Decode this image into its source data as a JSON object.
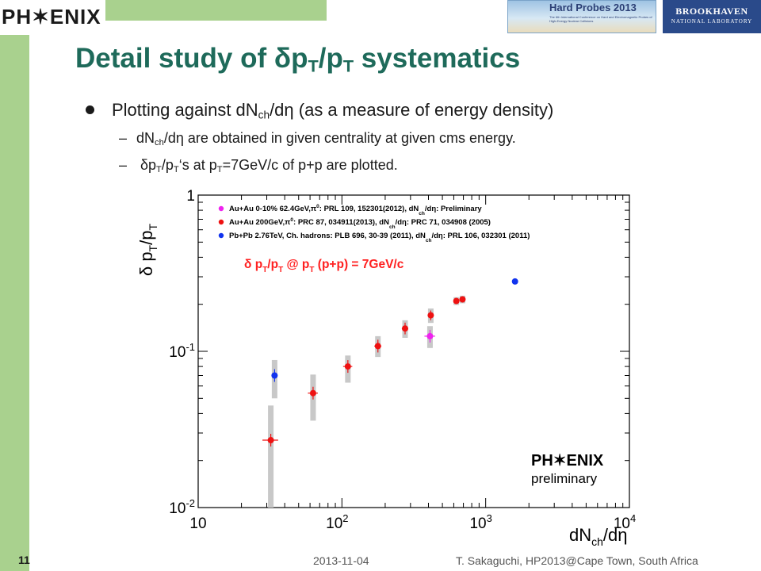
{
  "header": {
    "logo_text": "PH✶ENIX",
    "conference_banner": "Hard Probes 2013",
    "conference_subtitle": "The 6th International Conference on Hard and Electromagnetic Probes of High-Energy Nuclear Collisions",
    "lab_name_line1": "BROOKHAVEN",
    "lab_name_line2": "NATIONAL LABORATORY"
  },
  "slide": {
    "title": {
      "pre": "Detail study of δp",
      "sub1": "T",
      "mid": "/p",
      "sub2": "T",
      "post": " systematics"
    },
    "bullet1": {
      "pre": "Plotting against dN",
      "sub": "ch",
      "post": "/dη (as a measure of energy density)"
    },
    "sub_bullet1": {
      "dash": "–",
      "pre": "dN",
      "sub": "ch",
      "post": "/dη are obtained in given centrality at given cms energy."
    },
    "sub_bullet2": {
      "dash": "–",
      "a": " δp",
      "sub1": "T",
      "b": "/p",
      "sub2": "T",
      "c": "‘s at p",
      "sub3": "T",
      "d": "=7GeV/c of p+p are plotted."
    }
  },
  "footer": {
    "slide_number": "11",
    "date": "2013-11-04",
    "author": "T. Sakaguchi, HP2013@Cape Town, South Africa"
  },
  "chart_data": {
    "type": "scatter",
    "x_scale": "log",
    "y_scale": "log",
    "xlim": [
      10,
      10000
    ],
    "ylim": [
      0.01,
      1
    ],
    "x_tick_labels": [
      {
        "value": 10,
        "base": "10",
        "exp": ""
      },
      {
        "value": 100,
        "base": "10",
        "exp": "2"
      },
      {
        "value": 1000,
        "base": "10",
        "exp": "3"
      },
      {
        "value": 10000,
        "base": "10",
        "exp": "4"
      }
    ],
    "y_tick_labels": [
      {
        "value": 1,
        "base": "1",
        "exp": ""
      },
      {
        "value": 0.1,
        "base": "10",
        "exp": "-1"
      },
      {
        "value": 0.01,
        "base": "10",
        "exp": "-2"
      }
    ],
    "xlabel": {
      "pre": "dN",
      "sub": "ch",
      "post": "/dη"
    },
    "ylabel": {
      "pre": "δ p",
      "sub1": "T",
      "mid": "/p",
      "sub2": "T"
    },
    "annotation": {
      "pre": "δ p",
      "sub1": "T",
      "mid1": "/p",
      "sub2": "T",
      "mid2": " @ p",
      "sub3": "T",
      "post": " (p+p) = 7GeV/c",
      "color": "#ff2020"
    },
    "watermark": {
      "logo": "PH✶ENIX",
      "text": "preliminary"
    },
    "grid": false,
    "legend_position": "top-left",
    "series": [
      {
        "name_parts": {
          "pre": "Au+Au 0-10% 62.4GeV,π",
          "sup": "0",
          "post": ": PRL 109, 152301(2012), dN",
          "sub": "ch",
          "post2": "/dη: Preliminary"
        },
        "color": "#ee22ee",
        "points": [
          {
            "x": 410,
            "y": 0.125,
            "xerr": 35,
            "ylo": 0.105,
            "yhi": 0.145
          }
        ]
      },
      {
        "name_parts": {
          "pre": "Au+Au 200GeV,π",
          "sup": "0",
          "post": ": PRC 87, 034911(2013), dN",
          "sub": "ch",
          "post2": "/dη: PRC 71, 034908 (2005)"
        },
        "color": "#ee1111",
        "points": [
          {
            "x": 32,
            "y": 0.027,
            "xerr": 4,
            "ylo": 0.01,
            "yhi": 0.045
          },
          {
            "x": 63,
            "y": 0.054,
            "xerr": 5,
            "ylo": 0.036,
            "yhi": 0.071
          },
          {
            "x": 110,
            "y": 0.08,
            "xerr": 8,
            "ylo": 0.063,
            "yhi": 0.094
          },
          {
            "x": 178,
            "y": 0.108,
            "xerr": 10,
            "ylo": 0.092,
            "yhi": 0.125
          },
          {
            "x": 275,
            "y": 0.14,
            "xerr": 14,
            "ylo": 0.122,
            "yhi": 0.158
          },
          {
            "x": 415,
            "y": 0.17,
            "xerr": 18,
            "ylo": 0.152,
            "yhi": 0.188
          },
          {
            "x": 625,
            "y": 0.21,
            "xerr": 22,
            "ylo": 0.198,
            "yhi": 0.222
          },
          {
            "x": 690,
            "y": 0.215,
            "xerr": 25,
            "ylo": 0.203,
            "yhi": 0.227
          }
        ]
      },
      {
        "name_parts": {
          "pre": "Pb+Pb 2.76TeV, Ch. hadrons: PLB 696, 30-39 (2011), dN",
          "sup": "",
          "post": "",
          "sub": "ch",
          "post2": "/dη: PRL 106, 032301 (2011)"
        },
        "color": "#1133ee",
        "points": [
          {
            "x": 34,
            "y": 0.07,
            "xerr": 1.5,
            "ylo": 0.05,
            "yhi": 0.088
          },
          {
            "x": 1600,
            "y": 0.28,
            "xerr": 0,
            "ylo": 0.28,
            "yhi": 0.28
          }
        ]
      }
    ]
  }
}
